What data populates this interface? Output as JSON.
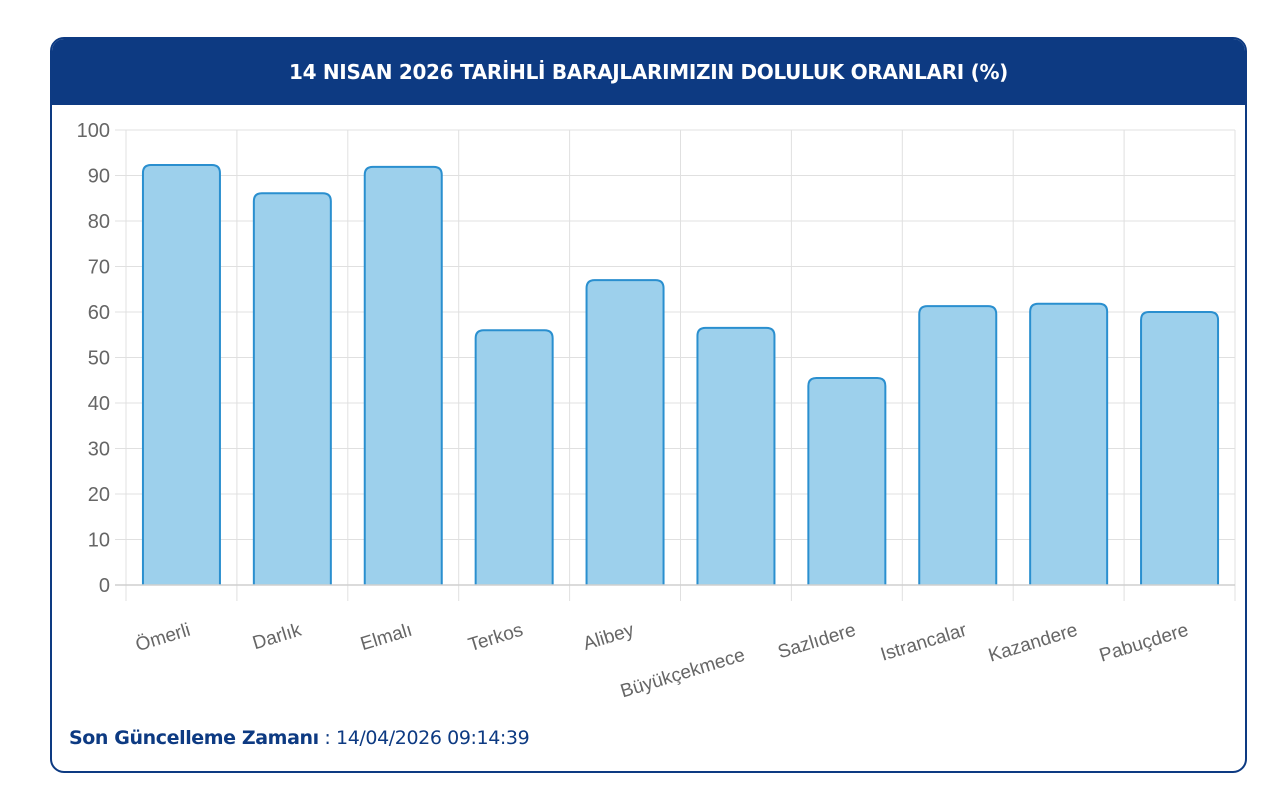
{
  "header": {
    "title": "14 NISAN 2026 TARİHLİ BARAJLARIMIZIN DOLULUK ORANLARI (%)"
  },
  "footer": {
    "label": "Son Güncelleme Zamanı",
    "separator": " : ",
    "value": "14/04/2026 09:14:39"
  },
  "colors": {
    "header_bg": "#0d3a82",
    "bar_fill": "#9dd0ec",
    "bar_stroke": "#2a8fcf",
    "grid": "#e0e0e0",
    "tick_text": "#666666"
  },
  "chart_data": {
    "type": "bar",
    "title": "14 NISAN 2026 TARİHLİ BARAJLARIMIZIN DOLULUK ORANLARI (%)",
    "xlabel": "",
    "ylabel": "",
    "ylim": [
      0,
      100
    ],
    "yticks": [
      0,
      10,
      20,
      30,
      40,
      50,
      60,
      70,
      80,
      90,
      100
    ],
    "grid": true,
    "legend": "none",
    "categories": [
      "Ömerli",
      "Darlık",
      "Elmalı",
      "Terkos",
      "Alibey",
      "Büyükçekmece",
      "Sazlıdere",
      "Istrancalar",
      "Kazandere",
      "Pabuçdere"
    ],
    "values": [
      92.3,
      86.1,
      91.9,
      56.0,
      67.0,
      56.5,
      45.5,
      61.3,
      61.8,
      60.0
    ]
  }
}
